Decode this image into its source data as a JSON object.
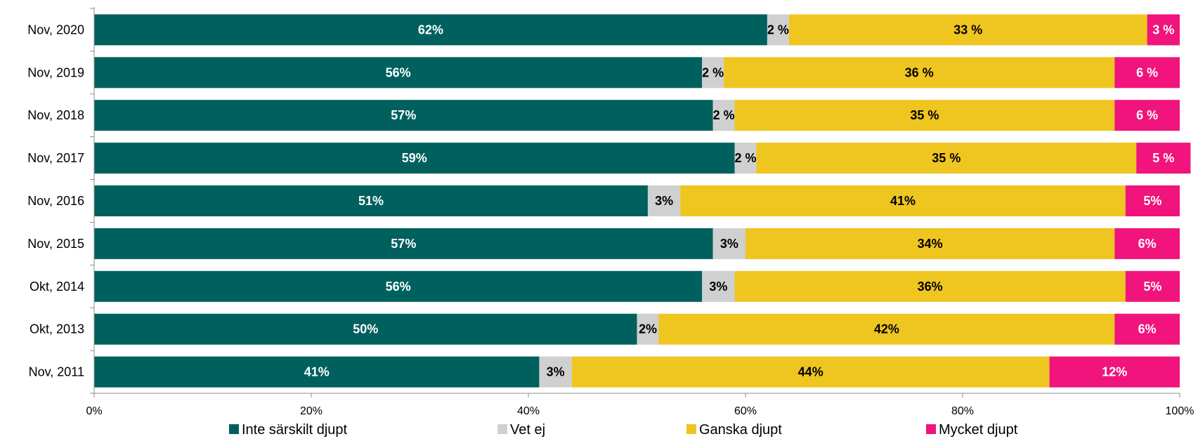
{
  "chart_data": {
    "type": "bar",
    "orientation": "horizontal",
    "stacked": "percent",
    "title": "",
    "xlabel": "",
    "ylabel": "",
    "xlim": [
      0,
      100
    ],
    "grid": false,
    "legend_position": "bottom",
    "categories": [
      "Nov, 2020",
      "Nov, 2019",
      "Nov, 2018",
      "Nov, 2017",
      "Nov, 2016",
      "Nov, 2015",
      "Okt, 2014",
      "Okt, 2013",
      "Nov, 2011"
    ],
    "x_ticks": [
      {
        "value": 0,
        "label": "0%"
      },
      {
        "value": 20,
        "label": "20%"
      },
      {
        "value": 40,
        "label": "40%"
      },
      {
        "value": 60,
        "label": "60%"
      },
      {
        "value": 80,
        "label": "80%"
      },
      {
        "value": 100,
        "label": "100%"
      }
    ],
    "series": [
      {
        "name": "Inte särskilt djupt",
        "color": "#00605e",
        "label_color": "#ffffff",
        "values": [
          62,
          56,
          57,
          59,
          51,
          57,
          56,
          50,
          41
        ],
        "labels": [
          "62%",
          "56%",
          "57%",
          "59%",
          "51%",
          "57%",
          "56%",
          "50%",
          "41%"
        ]
      },
      {
        "name": "Vet ej",
        "color": "#d0d0d0",
        "label_color": "#000000",
        "values": [
          2,
          2,
          2,
          2,
          3,
          3,
          3,
          2,
          3
        ],
        "labels": [
          "2 %",
          "2 %",
          "2 %",
          "2 %",
          "3%",
          "3%",
          "3%",
          "2%",
          "3%"
        ]
      },
      {
        "name": "Ganska djupt",
        "color": "#efc520",
        "label_color": "#000000",
        "values": [
          33,
          36,
          35,
          35,
          41,
          34,
          36,
          42,
          44
        ],
        "labels": [
          "33 %",
          "36 %",
          "35 %",
          "35 %",
          "41%",
          "34%",
          "36%",
          "42%",
          "44%"
        ]
      },
      {
        "name": "Mycket djupt",
        "color": "#f0147c",
        "label_color": "#ffffff",
        "values": [
          3,
          6,
          6,
          5,
          5,
          6,
          5,
          6,
          12
        ],
        "labels": [
          "3 %",
          "6 %",
          "6 %",
          "5 %",
          "5%",
          "6%",
          "5%",
          "6%",
          "12%"
        ]
      }
    ]
  }
}
